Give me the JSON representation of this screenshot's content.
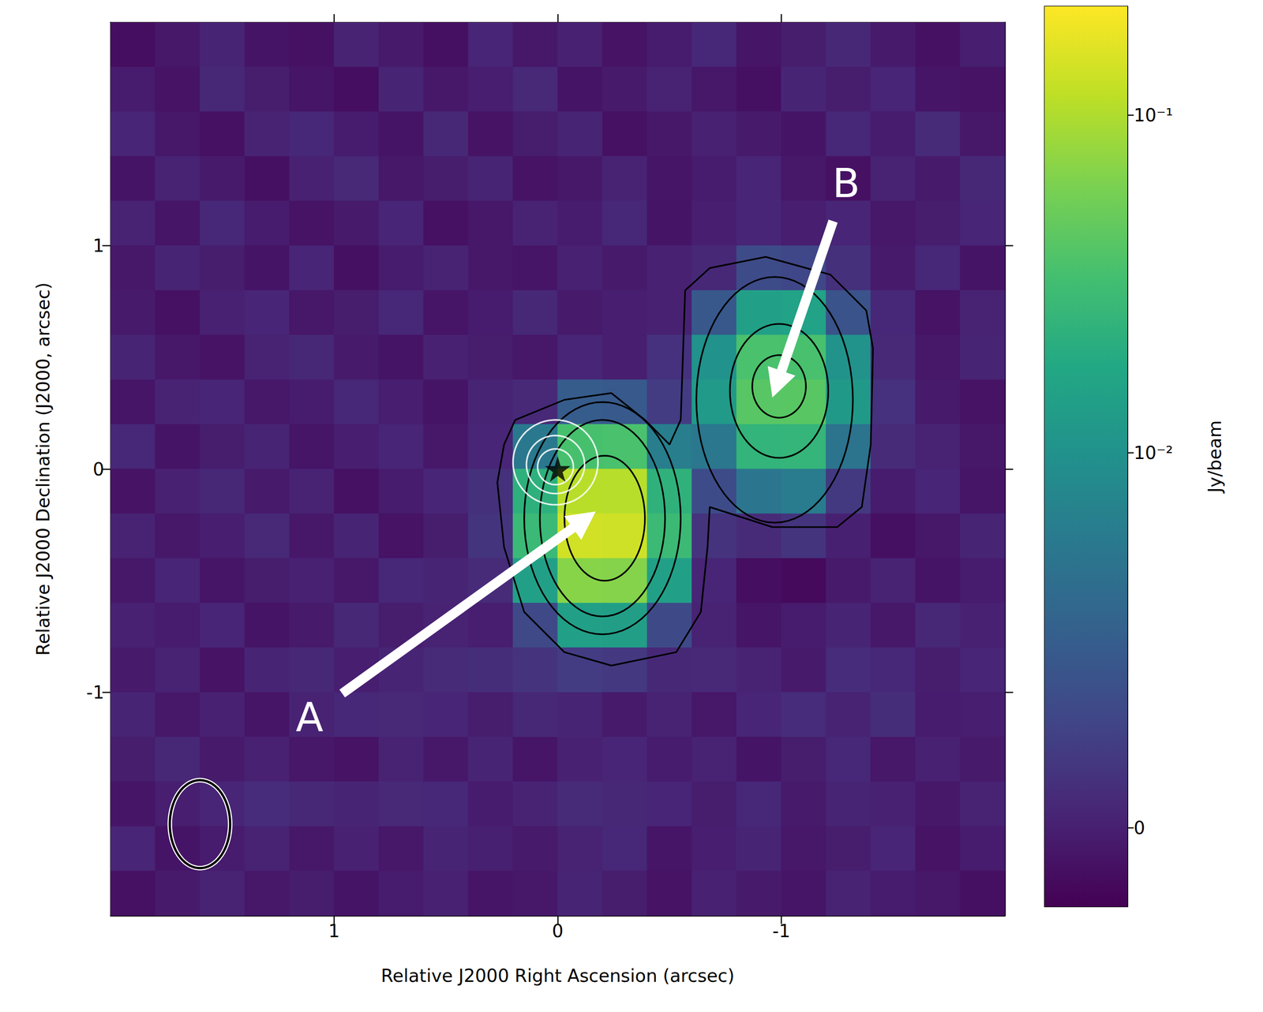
{
  "chart_data": {
    "type": "heatmap",
    "x_label": "Relative J2000 Right Ascension (arcsec)",
    "y_label": "Relative J2000 Declination (J2000, arcsec)",
    "xlim": [
      2,
      -2
    ],
    "ylim": [
      -2,
      2
    ],
    "xticks": [
      1,
      0,
      -1
    ],
    "yticks": [
      -1,
      0,
      1
    ],
    "grid": false,
    "x": [
      1.9,
      1.7,
      1.5,
      1.3,
      1.1,
      0.9,
      0.7,
      0.5,
      0.3,
      0.1,
      -0.1,
      -0.3,
      -0.5,
      -0.7,
      -0.9,
      -1.1,
      -1.3,
      -1.5,
      -1.7,
      -1.9
    ],
    "y": [
      1.9,
      1.7,
      1.5,
      1.3,
      1.1,
      0.9,
      0.7,
      0.5,
      0.3,
      0.1,
      -0.1,
      -0.3,
      -0.5,
      -0.7,
      -0.9,
      -1.1,
      -1.3,
      -1.5,
      -1.7,
      -1.9
    ],
    "cells": [
      [
        -0.0012,
        -0.0005,
        0.0003,
        -0.0008,
        -0.001,
        0.0002,
        -0.0004,
        -0.0011,
        0.0004,
        -0.0006,
        0.0001,
        -0.0009,
        -0.0003,
        0.0005,
        -0.0007,
        -0.0002,
        0.0006,
        -0.0004,
        -0.001,
        -0.0001
      ],
      [
        -0.0003,
        -0.0009,
        0.0006,
        -0.0002,
        -0.0007,
        -0.0012,
        0.0003,
        -0.0005,
        -0.0001,
        0.0007,
        -0.0008,
        -0.0004,
        0.0002,
        -0.0006,
        -0.0011,
        0.0003,
        -0.0002,
        0.0004,
        -0.0007,
        -0.0009
      ],
      [
        0.0004,
        -0.0006,
        -0.001,
        0.0002,
        0.0005,
        -0.0003,
        -0.0008,
        0.0006,
        -0.0009,
        -0.0002,
        0.0003,
        -0.001,
        -0.0005,
        0.0001,
        -0.0004,
        -0.0008,
        0.0005,
        -0.0003,
        0.0008,
        -0.0005
      ],
      [
        -0.0008,
        0.0002,
        -0.0004,
        -0.0011,
        0.0001,
        0.0007,
        -0.0006,
        -0.0002,
        0.0003,
        -0.0009,
        -0.0005,
        0.0002,
        -0.0007,
        -0.0003,
        0.0004,
        -0.0006,
        -0.001,
        0.0002,
        -0.0004,
        0.0006
      ],
      [
        0.0002,
        -0.0007,
        0.0005,
        -0.0003,
        -0.0009,
        -0.0004,
        0.0004,
        -0.001,
        -0.0006,
        0.0002,
        -0.0003,
        0.0005,
        -0.0008,
        -0.0001,
        0.0004,
        -0.0001,
        0.0004,
        -0.0006,
        -0.0002,
        0.0004
      ],
      [
        -0.0006,
        0.0003,
        -0.0002,
        -0.0008,
        0.0004,
        -0.0011,
        -0.0003,
        0.0002,
        -0.0005,
        -0.0007,
        0.0001,
        -0.0004,
        0.0001,
        0.0006,
        0.0033,
        0.003,
        0.0012,
        -0.0004,
        0.0005,
        -0.0008
      ],
      [
        -0.0004,
        -0.001,
        0.0001,
        0.0004,
        -0.0006,
        -0.0002,
        0.0005,
        -0.0007,
        -0.0003,
        0.0006,
        -0.0004,
        -0.0001,
        0.0001,
        0.0045,
        0.0146,
        0.0152,
        0.004,
        0.0005,
        -0.0009,
        0.0002
      ],
      [
        0.0003,
        -0.0005,
        -0.0009,
        0.0002,
        0.0006,
        -0.0004,
        -0.0008,
        0.0001,
        -0.0002,
        -0.0006,
        0.0004,
        -0.0001,
        0.0013,
        0.01,
        0.0356,
        0.0349,
        0.0103,
        0.0007,
        -0.0006,
        0.0003
      ],
      [
        -0.0007,
        0.0002,
        0.0004,
        -0.0006,
        -0.0003,
        0.0005,
        -0.0001,
        -0.0008,
        0.0003,
        0.0007,
        0.0048,
        0.0046,
        0.0021,
        0.0123,
        0.0418,
        0.0424,
        0.012,
        0.0013,
        -0.0004,
        -0.0009
      ],
      [
        0.0005,
        -0.0008,
        -0.0002,
        0.0003,
        -0.0007,
        -0.0001,
        0.0004,
        -0.0005,
        0.0004,
        0.0075,
        0.0345,
        0.0352,
        0.0081,
        0.0074,
        0.0247,
        0.0253,
        0.007,
        0.0008,
        0.0002,
        -0.0006
      ],
      [
        -0.0009,
        0.0001,
        0.0006,
        -0.0004,
        0.0002,
        -0.001,
        -0.0003,
        0.0004,
        0.0012,
        0.0224,
        0.1085,
        0.1072,
        0.023,
        0.0033,
        0.0073,
        0.0078,
        0.0019,
        -0.0003,
        0.0004,
        -0.0007
      ],
      [
        0.0002,
        -0.0006,
        -0.0001,
        0.0007,
        -0.0005,
        0.0003,
        -0.0009,
        -0.0002,
        0.0015,
        0.0281,
        0.137,
        0.1356,
        0.0287,
        0.0014,
        0.0008,
        0.0015,
        0,
        -0.0011,
        -0.0006,
        0.0003
      ],
      [
        -0.0005,
        0.0004,
        -0.0007,
        -0.0002,
        0.0001,
        -0.0006,
        0.0005,
        0.0003,
        0.0008,
        0.0146,
        0.069,
        0.0681,
        0.0147,
        0.0004,
        -0.0012,
        -0.0015,
        -0.0004,
        0.0002,
        -0.0008,
        -0.0003
      ],
      [
        0.0001,
        -0.0003,
        0.0004,
        -0.0008,
        -0.0004,
        0.0006,
        -0.0002,
        0.0002,
        -0.0001,
        0.0031,
        0.0143,
        0.0138,
        0.0032,
        0.0002,
        -0.0007,
        -0.0003,
        0.0003,
        -0.0005,
        0.0006,
        0.0001
      ],
      [
        -0.0004,
        0.0002,
        -0.0009,
        0.0003,
        0.0006,
        -0.0001,
        0.0003,
        0.0008,
        0.001,
        0.0014,
        0.0021,
        0.0018,
        0.0006,
        0.0007,
        0.0002,
        -0.0004,
        0.0009,
        0.0005,
        -0.0002,
        0.0004
      ],
      [
        0.0003,
        -0.0005,
        0.0001,
        -0.0007,
        0.0002,
        0.0005,
        0.0007,
        0.0004,
        -0.0002,
        0.0006,
        0.0003,
        -0.0004,
        0.0002,
        -0.0006,
        0.0004,
        0.0009,
        0.0002,
        0.001,
        -0.0003,
        -0.0001
      ],
      [
        -0.0002,
        0.0006,
        -0.0004,
        0.0001,
        -0.0006,
        -0.0009,
        0.0002,
        -0.0005,
        0.0003,
        -0.0007,
        0.0001,
        0.0004,
        -0.0003,
        0.0002,
        -0.0008,
        -0.0002,
        0.0005,
        -0.0006,
        0.0001,
        -0.0004
      ],
      [
        -0.0007,
        -0.0001,
        0.0004,
        0.0009,
        0.0006,
        0.0003,
        0.0007,
        0.0005,
        -0.0003,
        0.0002,
        0.0008,
        0.0006,
        0.0004,
        -0.0002,
        0.0005,
        -0.0004,
        0.0003,
        0.0001,
        -0.0005,
        0.0002
      ],
      [
        0.0004,
        -0.0008,
        -0.0003,
        0.0002,
        -0.0005,
        0.0001,
        -0.0006,
        0.0003,
        0,
        -0.0004,
        0.0002,
        0.0005,
        -0.0007,
        -0.0001,
        0.0003,
        -0.0006,
        -0.0002,
        0.0004,
        -0.0009,
        -0.0003
      ],
      [
        -0.001,
        -0.0004,
        0.0002,
        -0.0006,
        -0.0002,
        -0.0008,
        -0.0003,
        0.0001,
        -0.0007,
        -0.0005,
        0.0003,
        -0.0002,
        -0.0009,
        0.0001,
        -0.0004,
        -0.0007,
        0.0002,
        -0.0003,
        -0.0006,
        -0.0011
      ]
    ],
    "colorbar": {
      "label": "Jy/beam",
      "log": true,
      "range": [
        -0.0021,
        0.21
      ],
      "ticks": [
        0,
        {
          "value": 0.01,
          "label": "10⁻²"
        },
        {
          "value": 0.1,
          "label": "10⁻¹"
        }
      ]
    },
    "contours": [
      {
        "color": "#000000",
        "points": [
          [
            0.19,
            0.22
          ],
          [
            -0.03,
            0.31
          ],
          [
            -0.24,
            0.34
          ],
          [
            -0.39,
            0.22
          ],
          [
            -0.5,
            0.11
          ],
          [
            -0.55,
            0.22
          ],
          [
            -0.57,
            0.8
          ],
          [
            -0.68,
            0.9
          ],
          [
            -0.93,
            0.95
          ],
          [
            -1.22,
            0.87
          ],
          [
            -1.38,
            0.71
          ],
          [
            -1.41,
            0.54
          ],
          [
            -1.4,
            0.11
          ],
          [
            -1.36,
            -0.17
          ],
          [
            -1.25,
            -0.26
          ],
          [
            -0.96,
            -0.26
          ],
          [
            -0.68,
            -0.17
          ],
          [
            -0.67,
            -0.35
          ],
          [
            -0.64,
            -0.64
          ],
          [
            -0.53,
            -0.82
          ],
          [
            -0.24,
            -0.88
          ],
          [
            -0.03,
            -0.82
          ],
          [
            0.15,
            -0.64
          ],
          [
            0.24,
            -0.35
          ],
          [
            0.27,
            -0.06
          ],
          [
            0.24,
            0.11
          ]
        ]
      },
      {
        "color": "#000000",
        "center": [
          -0.2,
          -0.22
        ],
        "radii": [
          0.35,
          0.52
        ]
      },
      {
        "color": "#000000",
        "center": [
          -0.2,
          -0.22
        ],
        "radii": [
          0.28,
          0.44
        ]
      },
      {
        "color": "#000000",
        "center": [
          -0.21,
          -0.22
        ],
        "radii": [
          0.18,
          0.28
        ]
      },
      {
        "color": "#000000",
        "center": [
          -0.97,
          0.31
        ],
        "radii": [
          0.35,
          0.55
        ]
      },
      {
        "color": "#000000",
        "center": [
          -0.99,
          0.35
        ],
        "radii": [
          0.22,
          0.3
        ]
      },
      {
        "color": "#000000",
        "center": [
          -0.99,
          0.37
        ],
        "radii": [
          0.12,
          0.14
        ]
      },
      {
        "color": "#ffffff",
        "center": [
          0.01,
          0.03
        ],
        "radii": [
          0.19,
          0.19
        ]
      },
      {
        "color": "#ffffff",
        "center": [
          0.01,
          0.02
        ],
        "radii": [
          0.13,
          0.13
        ]
      },
      {
        "color": "#ffffff",
        "center": [
          0.01,
          0.01
        ],
        "radii": [
          0.08,
          0.08
        ]
      }
    ],
    "markers": [
      {
        "x": 0,
        "y": 0,
        "marker": "star",
        "color": "#000000"
      }
    ],
    "beam": {
      "center": [
        1.6,
        -1.59
      ],
      "radii": [
        0.135,
        0.197
      ]
    },
    "annotations": [
      {
        "text": "A",
        "xy": [
          -0.17,
          -0.19
        ],
        "xytext": [
          1.11,
          -1.11
        ]
      },
      {
        "text": "B",
        "xy": [
          -0.96,
          0.32
        ],
        "xytext": [
          -1.29,
          1.28
        ]
      }
    ]
  }
}
